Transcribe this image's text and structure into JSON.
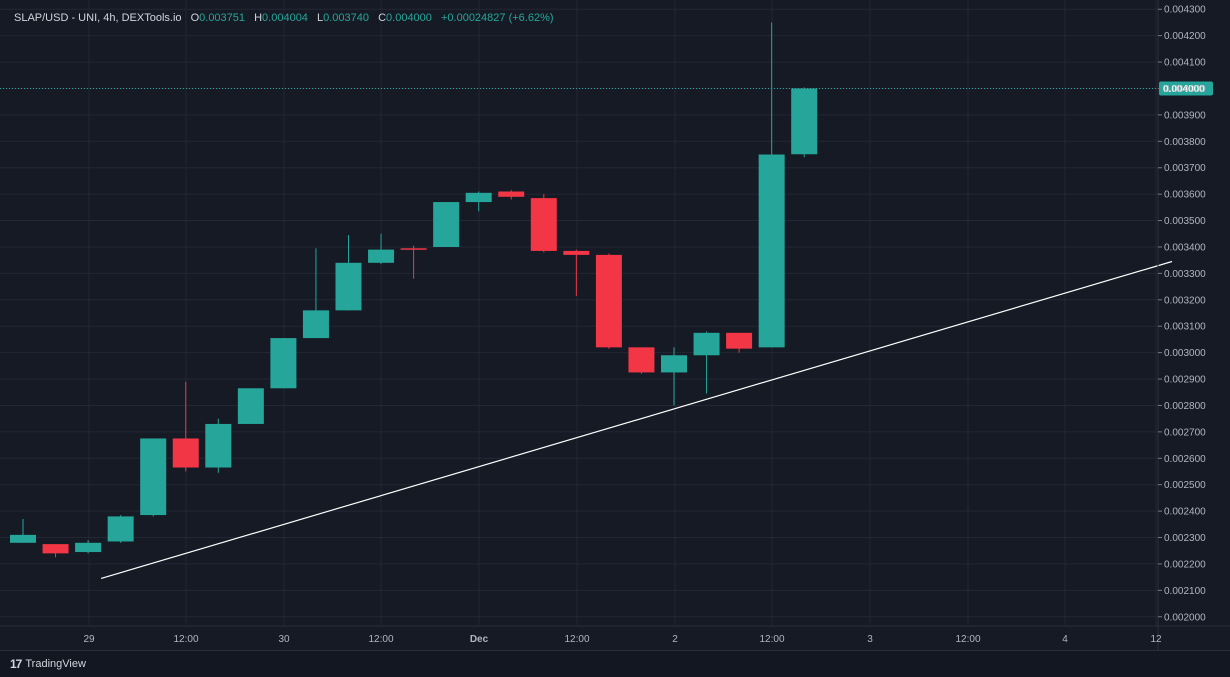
{
  "legend": {
    "symbol": "SLAP/USD - UNI, 4h, DEXTools.io",
    "o_key": "O",
    "o_val": "0.003751",
    "h_key": "H",
    "h_val": "0.004004",
    "l_key": "L",
    "l_val": "0.003740",
    "c_key": "C",
    "c_val": "0.004000",
    "change": "+0.00024827 (+6.62%)"
  },
  "footer": {
    "brand_mark": "17",
    "brand_text": "TradingView"
  },
  "colors": {
    "up": "#26a69a",
    "down": "#f23645",
    "grid": "#232734",
    "background": "#161a25",
    "trendline": "#ffffff",
    "last_price": "#26a69a"
  },
  "chart_data": {
    "type": "candlestick",
    "y_tick_labels": [
      "0.004300",
      "0.004200",
      "0.004100",
      "0.004000",
      "0.003900",
      "0.003800",
      "0.003700",
      "0.003600",
      "0.003500",
      "0.003400",
      "0.003300",
      "0.003200",
      "0.003100",
      "0.003000",
      "0.002900",
      "0.002800",
      "0.002700",
      "0.002600",
      "0.002500",
      "0.002400",
      "0.002300",
      "0.002200",
      "0.002100",
      "0.002000"
    ],
    "x_tick_labels": [
      "29",
      "12:00",
      "30",
      "12:00",
      "Dec",
      "12:00",
      "2",
      "12:00",
      "3",
      "12:00",
      "4",
      "12"
    ],
    "ylim": [
      0.001965,
      0.004335
    ],
    "last_price": "0.004000",
    "grid": true,
    "candles": [
      {
        "o": 0.00228,
        "h": 0.00237,
        "l": 0.00228,
        "c": 0.00231
      },
      {
        "o": 0.002275,
        "h": 0.002275,
        "l": 0.002225,
        "c": 0.00224
      },
      {
        "o": 0.002245,
        "h": 0.00229,
        "l": 0.00224,
        "c": 0.00228
      },
      {
        "o": 0.002285,
        "h": 0.002385,
        "l": 0.00228,
        "c": 0.00238
      },
      {
        "o": 0.002385,
        "h": 0.002675,
        "l": 0.00238,
        "c": 0.002675
      },
      {
        "o": 0.002675,
        "h": 0.00289,
        "l": 0.00255,
        "c": 0.002565
      },
      {
        "o": 0.002565,
        "h": 0.00275,
        "l": 0.002545,
        "c": 0.00273
      },
      {
        "o": 0.00273,
        "h": 0.002865,
        "l": 0.00273,
        "c": 0.002865
      },
      {
        "o": 0.002865,
        "h": 0.003055,
        "l": 0.002865,
        "c": 0.003055
      },
      {
        "o": 0.003055,
        "h": 0.003395,
        "l": 0.003055,
        "c": 0.00316
      },
      {
        "o": 0.00316,
        "h": 0.003445,
        "l": 0.00316,
        "c": 0.00334
      },
      {
        "o": 0.00334,
        "h": 0.00345,
        "l": 0.003335,
        "c": 0.00339
      },
      {
        "o": 0.003395,
        "h": 0.003405,
        "l": 0.00328,
        "c": 0.00339
      },
      {
        "o": 0.0034,
        "h": 0.00357,
        "l": 0.0034,
        "c": 0.00357
      },
      {
        "o": 0.00357,
        "h": 0.00361,
        "l": 0.003535,
        "c": 0.003605
      },
      {
        "o": 0.00361,
        "h": 0.003615,
        "l": 0.00358,
        "c": 0.00359
      },
      {
        "o": 0.003585,
        "h": 0.0036,
        "l": 0.00338,
        "c": 0.003385
      },
      {
        "o": 0.003385,
        "h": 0.00339,
        "l": 0.003215,
        "c": 0.00337
      },
      {
        "o": 0.00337,
        "h": 0.003375,
        "l": 0.003015,
        "c": 0.00302
      },
      {
        "o": 0.00302,
        "h": 0.00302,
        "l": 0.00292,
        "c": 0.002925
      },
      {
        "o": 0.002925,
        "h": 0.00302,
        "l": 0.0028,
        "c": 0.00299
      },
      {
        "o": 0.00299,
        "h": 0.00308,
        "l": 0.002845,
        "c": 0.003075
      },
      {
        "o": 0.003075,
        "h": 0.003075,
        "l": 0.003,
        "c": 0.003015
      },
      {
        "o": 0.00302,
        "h": 0.00425,
        "l": 0.00302,
        "c": 0.00375
      },
      {
        "o": 0.003751,
        "h": 0.004004,
        "l": 0.00374,
        "c": 0.004
      }
    ],
    "trendline": {
      "p1": {
        "i": 2.4,
        "v": 0.002145
      },
      "p2": {
        "i": 35.3,
        "v": 0.003345
      }
    }
  }
}
